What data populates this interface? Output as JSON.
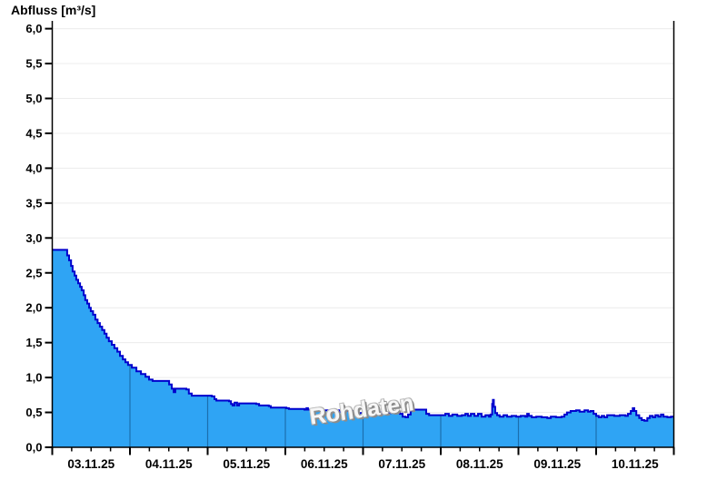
{
  "chart": {
    "title": "Abfluss [m³/s]",
    "watermark": "Rohdaten"
  },
  "colors": {
    "area_fill": "#2fa4f4",
    "line_stroke": "#0000cd",
    "day_gridline": "#1c6fae",
    "horizontal_gridline": "#ececec",
    "axis": "#000000",
    "text": "#000000"
  },
  "chart_data": {
    "type": "area",
    "title": "Abfluss [m³/s]",
    "ylabel": "Abfluss [m³/s]",
    "xlabel": "",
    "ylim": [
      0,
      6.11
    ],
    "ytick_step": 0.5,
    "ytick_values": [
      0,
      0.5,
      1.0,
      1.5,
      2.0,
      2.5,
      3.0,
      3.5,
      4.0,
      4.5,
      5.0,
      5.5,
      6.0
    ],
    "ytick_labels": [
      "0,0",
      "0,5",
      "1,0",
      "1,5",
      "2,0",
      "2,5",
      "3,0",
      "3,5",
      "4,0",
      "4,5",
      "5,0",
      "5,5",
      "6,0"
    ],
    "x_total_hours": 192,
    "x_minor_tick_hours": 6,
    "x_major_tick_hours": 24,
    "day_labels": [
      "03.11.25",
      "04.11.25",
      "05.11.25",
      "06.11.25",
      "07.11.25",
      "08.11.25",
      "09.11.25",
      "10.11.25"
    ],
    "grid": "on",
    "legend": "none",
    "series": [
      {
        "name": "Rohdaten",
        "unit": "m³/s",
        "x_unit": "hours_since_03.11.25_00:00",
        "interpolation": "step-after",
        "points": [
          [
            0,
            2.83
          ],
          [
            4.1,
            2.83
          ],
          [
            4.6,
            2.75
          ],
          [
            5.2,
            2.68
          ],
          [
            5.8,
            2.6
          ],
          [
            6.3,
            2.52
          ],
          [
            6.9,
            2.46
          ],
          [
            7.4,
            2.4
          ],
          [
            8.0,
            2.35
          ],
          [
            8.6,
            2.3
          ],
          [
            9.1,
            2.25
          ],
          [
            9.7,
            2.18
          ],
          [
            10.2,
            2.11
          ],
          [
            10.8,
            2.06
          ],
          [
            11.4,
            2.0
          ],
          [
            11.9,
            1.95
          ],
          [
            12.6,
            1.9
          ],
          [
            13.3,
            1.83
          ],
          [
            14.0,
            1.78
          ],
          [
            14.7,
            1.73
          ],
          [
            15.4,
            1.68
          ],
          [
            16.1,
            1.63
          ],
          [
            16.8,
            1.57
          ],
          [
            17.5,
            1.52
          ],
          [
            18.4,
            1.47
          ],
          [
            19.2,
            1.42
          ],
          [
            20.1,
            1.37
          ],
          [
            20.9,
            1.31
          ],
          [
            21.8,
            1.26
          ],
          [
            22.6,
            1.22
          ],
          [
            23.4,
            1.18
          ],
          [
            24.6,
            1.14
          ],
          [
            26.0,
            1.09
          ],
          [
            27.4,
            1.05
          ],
          [
            28.8,
            1.01
          ],
          [
            29.9,
            0.97
          ],
          [
            31.0,
            0.95
          ],
          [
            35.2,
            0.95
          ],
          [
            36.1,
            0.9
          ],
          [
            36.9,
            0.84
          ],
          [
            37.5,
            0.79
          ],
          [
            38.0,
            0.84
          ],
          [
            41.4,
            0.83
          ],
          [
            42.2,
            0.77
          ],
          [
            43.1,
            0.74
          ],
          [
            49.3,
            0.73
          ],
          [
            50.1,
            0.69
          ],
          [
            50.7,
            0.67
          ],
          [
            54.6,
            0.66
          ],
          [
            55.2,
            0.62
          ],
          [
            55.7,
            0.6
          ],
          [
            56.3,
            0.64
          ],
          [
            57.1,
            0.6
          ],
          [
            57.7,
            0.63
          ],
          [
            58.5,
            0.63
          ],
          [
            63.0,
            0.62
          ],
          [
            63.9,
            0.6
          ],
          [
            66.9,
            0.59
          ],
          [
            67.5,
            0.57
          ],
          [
            72.3,
            0.56
          ],
          [
            73.1,
            0.55
          ],
          [
            77.9,
            0.54
          ],
          [
            78.5,
            0.56
          ],
          [
            79.0,
            0.54
          ],
          [
            83.5,
            0.53
          ],
          [
            88.3,
            0.53
          ],
          [
            88.8,
            0.51
          ],
          [
            89.4,
            0.53
          ],
          [
            90.0,
            0.51
          ],
          [
            90.5,
            0.52
          ],
          [
            92.2,
            0.52
          ],
          [
            92.8,
            0.49
          ],
          [
            96.1,
            0.49
          ],
          [
            97.8,
            0.51
          ],
          [
            99.0,
            0.48
          ],
          [
            100.4,
            0.5
          ],
          [
            101.8,
            0.48
          ],
          [
            104.0,
            0.49
          ],
          [
            106.2,
            0.5
          ],
          [
            107.4,
            0.48
          ],
          [
            108.2,
            0.44
          ],
          [
            109.1,
            0.43
          ],
          [
            109.9,
            0.47
          ],
          [
            110.7,
            0.52
          ],
          [
            111.6,
            0.54
          ],
          [
            114.7,
            0.54
          ],
          [
            115.5,
            0.48
          ],
          [
            116.4,
            0.46
          ],
          [
            120.3,
            0.46
          ],
          [
            121.4,
            0.48
          ],
          [
            122.5,
            0.45
          ],
          [
            123.6,
            0.47
          ],
          [
            125.1,
            0.45
          ],
          [
            126.5,
            0.46
          ],
          [
            127.6,
            0.48
          ],
          [
            128.4,
            0.45
          ],
          [
            129.3,
            0.48
          ],
          [
            130.4,
            0.45
          ],
          [
            131.5,
            0.48
          ],
          [
            132.6,
            0.44
          ],
          [
            133.8,
            0.46
          ],
          [
            134.9,
            0.44
          ],
          [
            135.4,
            0.47
          ],
          [
            135.9,
            0.62
          ],
          [
            136.1,
            0.68
          ],
          [
            136.4,
            0.58
          ],
          [
            136.8,
            0.49
          ],
          [
            137.4,
            0.46
          ],
          [
            138.2,
            0.44
          ],
          [
            139.4,
            0.46
          ],
          [
            140.5,
            0.44
          ],
          [
            141.9,
            0.45
          ],
          [
            143.3,
            0.44
          ],
          [
            144.7,
            0.45
          ],
          [
            146.1,
            0.44
          ],
          [
            146.7,
            0.48
          ],
          [
            147.2,
            0.45
          ],
          [
            148.1,
            0.43
          ],
          [
            149.5,
            0.44
          ],
          [
            151.2,
            0.43
          ],
          [
            152.9,
            0.42
          ],
          [
            154.0,
            0.44
          ],
          [
            155.6,
            0.43
          ],
          [
            157.3,
            0.44
          ],
          [
            158.2,
            0.47
          ],
          [
            159.0,
            0.5
          ],
          [
            160.1,
            0.52
          ],
          [
            161.8,
            0.53
          ],
          [
            162.9,
            0.51
          ],
          [
            164.4,
            0.53
          ],
          [
            165.5,
            0.51
          ],
          [
            166.3,
            0.52
          ],
          [
            167.2,
            0.48
          ],
          [
            168.0,
            0.45
          ],
          [
            168.8,
            0.43
          ],
          [
            169.7,
            0.45
          ],
          [
            170.5,
            0.43
          ],
          [
            171.4,
            0.46
          ],
          [
            173.6,
            0.45
          ],
          [
            175.3,
            0.46
          ],
          [
            177.0,
            0.45
          ],
          [
            177.8,
            0.48
          ],
          [
            178.7,
            0.52
          ],
          [
            179.3,
            0.56
          ],
          [
            179.8,
            0.52
          ],
          [
            180.4,
            0.46
          ],
          [
            181.3,
            0.42
          ],
          [
            182.1,
            0.39
          ],
          [
            182.9,
            0.38
          ],
          [
            183.8,
            0.42
          ],
          [
            184.6,
            0.45
          ],
          [
            185.5,
            0.43
          ],
          [
            186.3,
            0.46
          ],
          [
            187.2,
            0.44
          ],
          [
            188.0,
            0.47
          ],
          [
            188.8,
            0.44
          ],
          [
            190.0,
            0.43
          ],
          [
            191.1,
            0.44
          ],
          [
            192.0,
            0.44
          ]
        ]
      }
    ]
  }
}
